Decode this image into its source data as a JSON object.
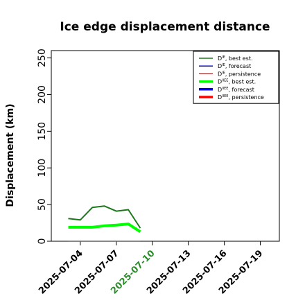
{
  "chart_data": {
    "type": "line",
    "title": "Ice edge displacement distance",
    "ylabel": "Displacement (km)",
    "xlabel": "",
    "ylim": [
      0,
      260
    ],
    "y_ticks": [
      0,
      50,
      100,
      150,
      200,
      250
    ],
    "xlim": [
      "2025-07-01T14:00",
      "2025-07-20T14:00"
    ],
    "x_ticks": [
      {
        "label": "2025-07-04",
        "date": "2025-07-04",
        "color": "#000000"
      },
      {
        "label": "2025-07-07",
        "date": "2025-07-07",
        "color": "#000000"
      },
      {
        "label": "2025-07-10",
        "date": "2025-07-10",
        "color": "#2e8b2e"
      },
      {
        "label": "2025-07-13",
        "date": "2025-07-13",
        "color": "#000000"
      },
      {
        "label": "2025-07-16",
        "date": "2025-07-16",
        "color": "#000000"
      },
      {
        "label": "2025-07-19",
        "date": "2025-07-19",
        "color": "#000000"
      }
    ],
    "grid": false,
    "legend_position": "top-right",
    "series": [
      {
        "name_base": "D",
        "name_sup": "IE",
        "name_rest": ", best est.",
        "color": "#1a7a1a",
        "width": 2,
        "x": [
          "2025-07-03",
          "2025-07-04",
          "2025-07-05",
          "2025-07-06",
          "2025-07-07",
          "2025-07-08",
          "2025-07-09"
        ],
        "y": [
          31,
          29,
          46,
          48,
          41,
          43,
          18
        ]
      },
      {
        "name_base": "D",
        "name_sup": "IE",
        "name_rest": ", forecast",
        "color": "#0000cc",
        "width": 2,
        "x": [],
        "y": []
      },
      {
        "name_base": "D",
        "name_sup": "IE",
        "name_rest": ", persistence",
        "color": "#8b0000",
        "width": 1,
        "x": [],
        "y": []
      },
      {
        "name_base": "D",
        "name_sup": "IIEE",
        "name_rest": ", best est.",
        "color": "#00ff00",
        "width": 4,
        "x": [
          "2025-07-03",
          "2025-07-04",
          "2025-07-05",
          "2025-07-06",
          "2025-07-07",
          "2025-07-08",
          "2025-07-09"
        ],
        "y": [
          19,
          19,
          19,
          21,
          22,
          23.5,
          13
        ]
      },
      {
        "name_base": "D",
        "name_sup": "IIEE",
        "name_rest": ", forecast",
        "color": "#0000ff",
        "width": 4,
        "x": [],
        "y": []
      },
      {
        "name_base": "D",
        "name_sup": "IIEE",
        "name_rest": ", persistence",
        "color": "#ff0000",
        "width": 4,
        "x": [],
        "y": []
      }
    ],
    "extra_lines": [
      {
        "color": "#606060",
        "x": [
          "2025-07-03",
          "2025-07-09"
        ],
        "y": [
          0,
          0
        ]
      }
    ]
  }
}
